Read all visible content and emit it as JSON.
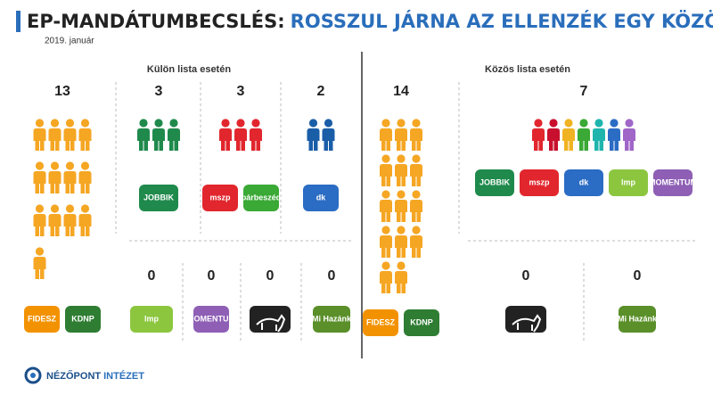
{
  "header": {
    "title_prefix": "EP-MANDÁTUMBECSLÉS:",
    "title_rest": "ROSSZUL JÁRNA AZ ELLENZÉK EGY KÖZÖS LISTÁVAL",
    "date": "2019. január"
  },
  "panels": [
    {
      "title": "Külön lista esetén",
      "groups": [
        {
          "seats": 13,
          "color": "#f5a623",
          "logos": [
            {
              "text": "FIDESZ",
              "color": "#f39200"
            },
            {
              "text": "KDNP",
              "color": "#2e7d32"
            }
          ]
        },
        {
          "seats": 3,
          "color": "#1f8a4c",
          "logos": [
            {
              "text": "JOBBIK",
              "color": "#1f8a4c"
            }
          ]
        },
        {
          "seats": 3,
          "color": "#e1262d",
          "logos": [
            {
              "text": "mszp",
              "color": "#e1262d"
            },
            {
              "text": "párbeszéd",
              "color": "#3aa935"
            }
          ]
        },
        {
          "seats": 2,
          "color": "#1b5ea8",
          "logos": [
            {
              "text": "dk",
              "color": "#2b6cc4"
            }
          ]
        },
        {
          "seats": 0,
          "logos": [
            {
              "text": "lmp",
              "color": "#8cc63f"
            }
          ]
        },
        {
          "seats": 0,
          "logos": [
            {
              "text": "MOMENTUM",
              "color": "#8e5fb5"
            }
          ]
        },
        {
          "seats": 0,
          "logos": [
            {
              "color": "#222222"
            }
          ]
        },
        {
          "seats": 0,
          "logos": [
            {
              "text": "Mi Hazánk",
              "color": "#5a8f29"
            }
          ]
        }
      ]
    },
    {
      "title": "Közös lista esetén",
      "groups": [
        {
          "seats": 14,
          "color": "#f5a623",
          "logos": [
            {
              "text": "FIDESZ",
              "color": "#f39200"
            },
            {
              "text": "KDNP",
              "color": "#2e7d32"
            }
          ]
        },
        {
          "seats": 7,
          "colors": [
            "#e1262d",
            "#c8102e",
            "#f0b323",
            "#3aa935",
            "#1fb5ad",
            "#2b6cc4",
            "#a066c8"
          ],
          "logos": [
            {
              "text": "JOBBIK",
              "color": "#1f8a4c"
            },
            {
              "text": "mszp",
              "color": "#e1262d"
            },
            {
              "text": "dk",
              "color": "#2b6cc4"
            },
            {
              "text": "lmp",
              "color": "#8cc63f"
            },
            {
              "text": "MOMENTUM",
              "color": "#8e5fb5"
            }
          ]
        },
        {
          "seats": 0,
          "logos": [
            {
              "color": "#222222"
            }
          ]
        },
        {
          "seats": 0,
          "logos": [
            {
              "text": "Mi Hazánk",
              "color": "#5a8f29"
            }
          ]
        }
      ]
    }
  ],
  "footer": {
    "brand_1": "NÉZŐPONT",
    "brand_2": "INTÉZET"
  }
}
